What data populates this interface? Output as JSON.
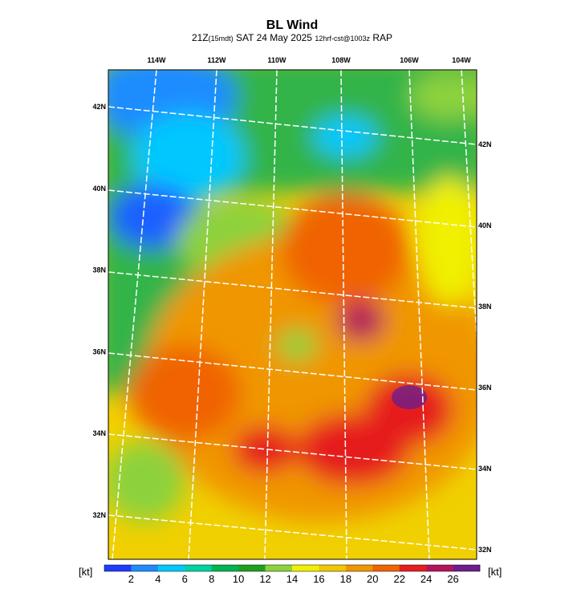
{
  "title": "BL Wind",
  "subtitle": {
    "time": "21Z",
    "local": "(15mdt)",
    "date": "SAT 24 May 2025",
    "run": "12hrf-cst@1003z",
    "model": "RAP"
  },
  "map": {
    "top_labels": [
      "114W",
      "112W",
      "110W",
      "108W",
      "106W",
      "104W"
    ],
    "left_labels": [
      "42N",
      "40N",
      "38N",
      "36N",
      "34N",
      "32N"
    ],
    "right_labels": [
      "42N",
      "40N",
      "38N",
      "36N",
      "34N",
      "32N"
    ]
  },
  "colorbar": {
    "unit_left": "[kt]",
    "unit_right": "[kt]",
    "ticks": [
      2,
      4,
      6,
      8,
      10,
      12,
      14,
      16,
      18,
      20,
      22,
      24,
      26
    ],
    "colors": [
      "#1e3cff",
      "#1e8cff",
      "#00c8ff",
      "#00d2a0",
      "#00b450",
      "#1ea01e",
      "#8cd23c",
      "#f0f000",
      "#f0c800",
      "#f09600",
      "#f06400",
      "#e61e1e",
      "#b4145a",
      "#6e1e8c"
    ]
  }
}
